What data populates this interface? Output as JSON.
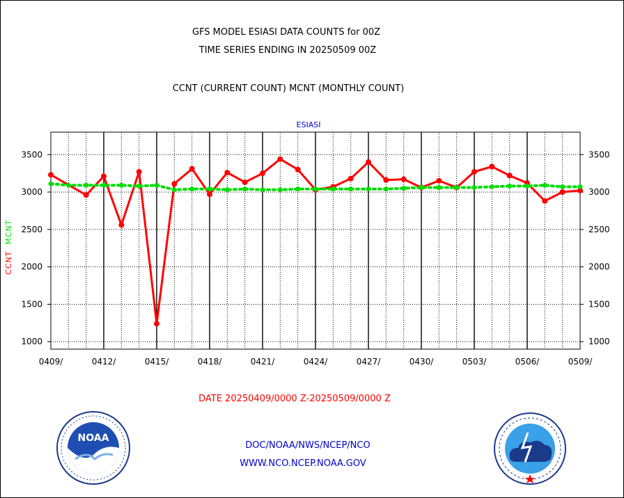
{
  "titles": {
    "line1": "GFS MODEL ESIASI DATA COUNTS for 00Z",
    "line2": "TIME SERIES ENDING IN 20250509 00Z",
    "line3": "CCNT (CURRENT COUNT) MCNT (MONTHLY COUNT)"
  },
  "y_axis_label": {
    "ccnt": "CCNT",
    "mcnt": "MCNT"
  },
  "footer": {
    "date_range": "DATE 20250409/0000 Z-20250509/0000 Z",
    "link1": "DOC/NOAA/NWS/NCEP/NCO",
    "link2": "WWW.NCO.NCEP.NOAA.GOV"
  },
  "logos": {
    "left": "noaa-logo",
    "right": "nws-logo",
    "left_text": "NOAA"
  },
  "colors": {
    "ccnt": "#ff0000",
    "mcnt": "#00dd00",
    "panel_title": "#0000cc"
  },
  "chart_data": {
    "type": "line",
    "title": "ESIASI",
    "x_tick_labels": [
      "0409/",
      "0412/",
      "0415/",
      "0418/",
      "0421/",
      "0424/",
      "0427/",
      "0430/",
      "0503/",
      "0506/",
      "0509/"
    ],
    "x_tick_days": [
      0,
      3,
      6,
      9,
      12,
      15,
      18,
      21,
      24,
      27,
      30
    ],
    "x_range_days": [
      0,
      30
    ],
    "ylim": [
      900,
      3800
    ],
    "y_ticks": [
      1000,
      1500,
      2000,
      2500,
      3000,
      3500
    ],
    "grid": true,
    "series": [
      {
        "name": "CCNT",
        "color": "#ff0000",
        "x_days": [
          0,
          2,
          3,
          4,
          5,
          6,
          7,
          8,
          9,
          10,
          11,
          12,
          13,
          14,
          15,
          16,
          17,
          18,
          19,
          20,
          21,
          22,
          23,
          24,
          25,
          26,
          27,
          28,
          29,
          30
        ],
        "values": [
          3230,
          2960,
          3210,
          2560,
          3270,
          1240,
          3110,
          3310,
          2970,
          3260,
          3130,
          3250,
          3440,
          3300,
          3030,
          3070,
          3180,
          3400,
          3160,
          3170,
          3060,
          3150,
          3060,
          3270,
          3340,
          3220,
          3120,
          2880,
          3000,
          3020
        ]
      },
      {
        "name": "MCNT",
        "color": "#00dd00",
        "x_days": [
          0,
          1,
          2,
          3,
          4,
          5,
          6,
          7,
          8,
          9,
          10,
          11,
          12,
          13,
          14,
          15,
          16,
          17,
          18,
          19,
          20,
          21,
          22,
          23,
          24,
          25,
          26,
          27,
          28,
          29,
          30
        ],
        "values": [
          3110,
          3090,
          3090,
          3090,
          3090,
          3080,
          3090,
          3030,
          3040,
          3040,
          3030,
          3040,
          3030,
          3030,
          3040,
          3040,
          3040,
          3040,
          3040,
          3040,
          3050,
          3060,
          3060,
          3060,
          3060,
          3070,
          3080,
          3080,
          3090,
          3070,
          3070
        ]
      }
    ]
  }
}
